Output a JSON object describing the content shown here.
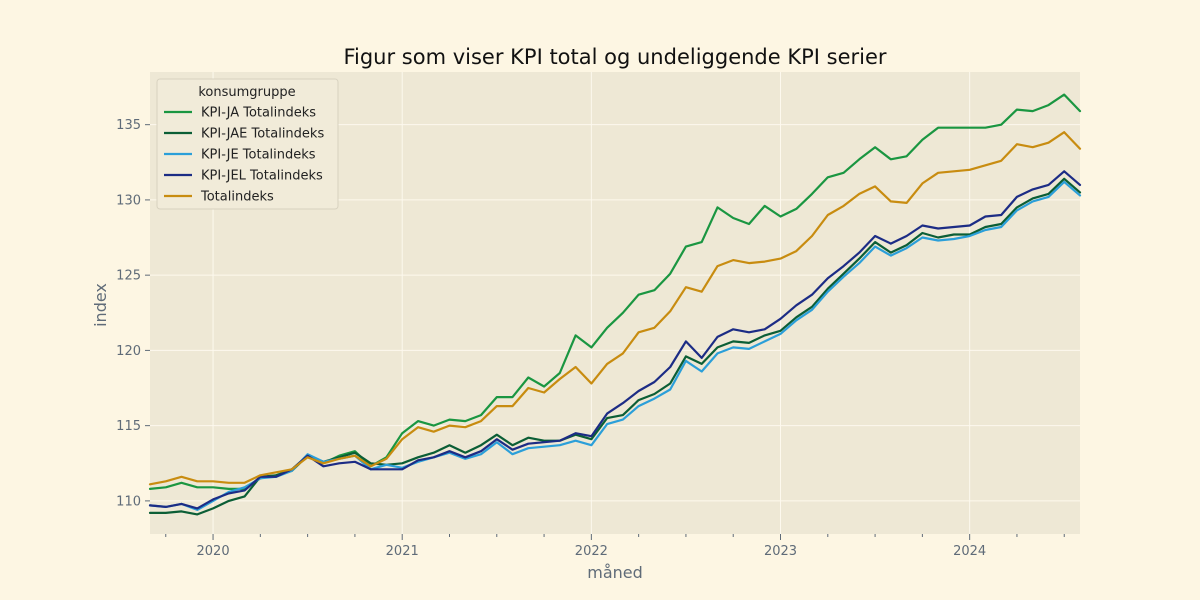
{
  "chart_data": {
    "type": "line",
    "title": "Figur som viser KPI total og undeliggende KPI serier",
    "xlabel": "måned",
    "ylabel": "index",
    "legend_title": "konsumgruppe",
    "legend_position": "top-left",
    "grid": true,
    "colors": {
      "figure_bg": "#fdf6e3",
      "plot_bg": "#eee8d5",
      "grid": "#fdf9ee",
      "text": "#5f6b78"
    },
    "x_start": "2019-09",
    "xlim": [
      "2019-09",
      "2024-08"
    ],
    "ylim": [
      107.8,
      138.5
    ],
    "x_ticks": [
      {
        "date": "2020-01",
        "label": "2020"
      },
      {
        "date": "2021-01",
        "label": "2021"
      },
      {
        "date": "2022-01",
        "label": "2022"
      },
      {
        "date": "2023-01",
        "label": "2023"
      },
      {
        "date": "2024-01",
        "label": "2024"
      }
    ],
    "y_ticks": [
      110,
      115,
      120,
      125,
      130,
      135
    ],
    "series": [
      {
        "name": "KPI-JA Totalindeks",
        "color": "#1a9641",
        "values": [
          110.8,
          110.9,
          111.2,
          110.9,
          110.9,
          110.8,
          110.8,
          111.5,
          111.7,
          112.1,
          113.0,
          112.5,
          113.0,
          113.3,
          112.3,
          112.9,
          114.5,
          115.3,
          115.0,
          115.4,
          115.3,
          115.7,
          116.9,
          116.9,
          118.2,
          117.6,
          118.5,
          121.0,
          120.2,
          121.5,
          122.5,
          123.7,
          124.0,
          125.1,
          126.9,
          127.2,
          129.5,
          128.8,
          128.4,
          129.6,
          128.9,
          129.4,
          130.4,
          131.5,
          131.8,
          132.7,
          133.5,
          132.7,
          132.9,
          134.0,
          134.8,
          134.8,
          134.8,
          134.8,
          135.0,
          136.0,
          135.9,
          136.3,
          137.0,
          135.9
        ]
      },
      {
        "name": "KPI-JAE Totalindeks",
        "color": "#0b5e36",
        "values": [
          109.2,
          109.2,
          109.3,
          109.1,
          109.5,
          110.0,
          110.3,
          111.6,
          111.7,
          112.0,
          113.0,
          112.6,
          112.9,
          113.2,
          112.5,
          112.4,
          112.5,
          112.9,
          113.2,
          113.7,
          113.2,
          113.7,
          114.4,
          113.7,
          114.2,
          114.0,
          114.0,
          114.4,
          114.1,
          115.5,
          115.7,
          116.7,
          117.1,
          117.8,
          119.6,
          119.1,
          120.2,
          120.6,
          120.5,
          121.0,
          121.3,
          122.2,
          122.9,
          124.1,
          125.1,
          126.1,
          127.2,
          126.5,
          127.0,
          127.8,
          127.5,
          127.7,
          127.7,
          128.2,
          128.4,
          129.5,
          130.1,
          130.4,
          131.4,
          130.5
        ]
      },
      {
        "name": "KPI-JE Totalindeks",
        "color": "#2b9fd9",
        "values": [
          109.7,
          109.6,
          109.8,
          109.4,
          110.0,
          110.6,
          110.9,
          111.5,
          111.6,
          112.0,
          113.1,
          112.6,
          112.8,
          113.0,
          112.1,
          112.4,
          112.2,
          112.6,
          112.9,
          113.2,
          112.8,
          113.1,
          113.9,
          113.1,
          113.5,
          113.6,
          113.7,
          114.0,
          113.7,
          115.1,
          115.4,
          116.3,
          116.8,
          117.4,
          119.3,
          118.6,
          119.8,
          120.2,
          120.1,
          120.6,
          121.1,
          122.0,
          122.7,
          123.9,
          124.9,
          125.8,
          126.9,
          126.3,
          126.8,
          127.5,
          127.3,
          127.4,
          127.6,
          128.0,
          128.2,
          129.3,
          129.9,
          130.2,
          131.2,
          130.3
        ]
      },
      {
        "name": "KPI-JEL Totalindeks",
        "color": "#1c2c85",
        "values": [
          109.7,
          109.6,
          109.8,
          109.5,
          110.1,
          110.5,
          110.7,
          111.6,
          111.6,
          112.1,
          113.0,
          112.3,
          112.5,
          112.6,
          112.1,
          112.1,
          112.1,
          112.7,
          112.9,
          113.3,
          112.9,
          113.3,
          114.1,
          113.4,
          113.8,
          113.9,
          114.0,
          114.5,
          114.3,
          115.8,
          116.5,
          117.3,
          117.9,
          118.9,
          120.6,
          119.5,
          120.9,
          121.4,
          121.2,
          121.4,
          122.1,
          123.0,
          123.7,
          124.8,
          125.6,
          126.5,
          127.6,
          127.1,
          127.6,
          128.3,
          128.1,
          128.2,
          128.3,
          128.9,
          129.0,
          130.2,
          130.7,
          131.0,
          131.9,
          131.0
        ]
      },
      {
        "name": "Totalindeks",
        "color": "#c88c10",
        "values": [
          111.1,
          111.3,
          111.6,
          111.3,
          111.3,
          111.2,
          111.2,
          111.7,
          111.9,
          112.1,
          112.9,
          112.5,
          112.8,
          113.0,
          112.3,
          112.8,
          114.1,
          114.9,
          114.6,
          115.0,
          114.9,
          115.3,
          116.3,
          116.3,
          117.5,
          117.2,
          118.1,
          118.9,
          117.8,
          119.1,
          119.8,
          121.2,
          121.5,
          122.6,
          124.2,
          123.9,
          125.6,
          126.0,
          125.8,
          125.9,
          126.1,
          126.6,
          127.6,
          129.0,
          129.6,
          130.4,
          130.9,
          129.9,
          129.8,
          131.1,
          131.8,
          131.9,
          132.0,
          132.3,
          132.6,
          133.7,
          133.5,
          133.8,
          134.5,
          133.4
        ]
      }
    ]
  }
}
